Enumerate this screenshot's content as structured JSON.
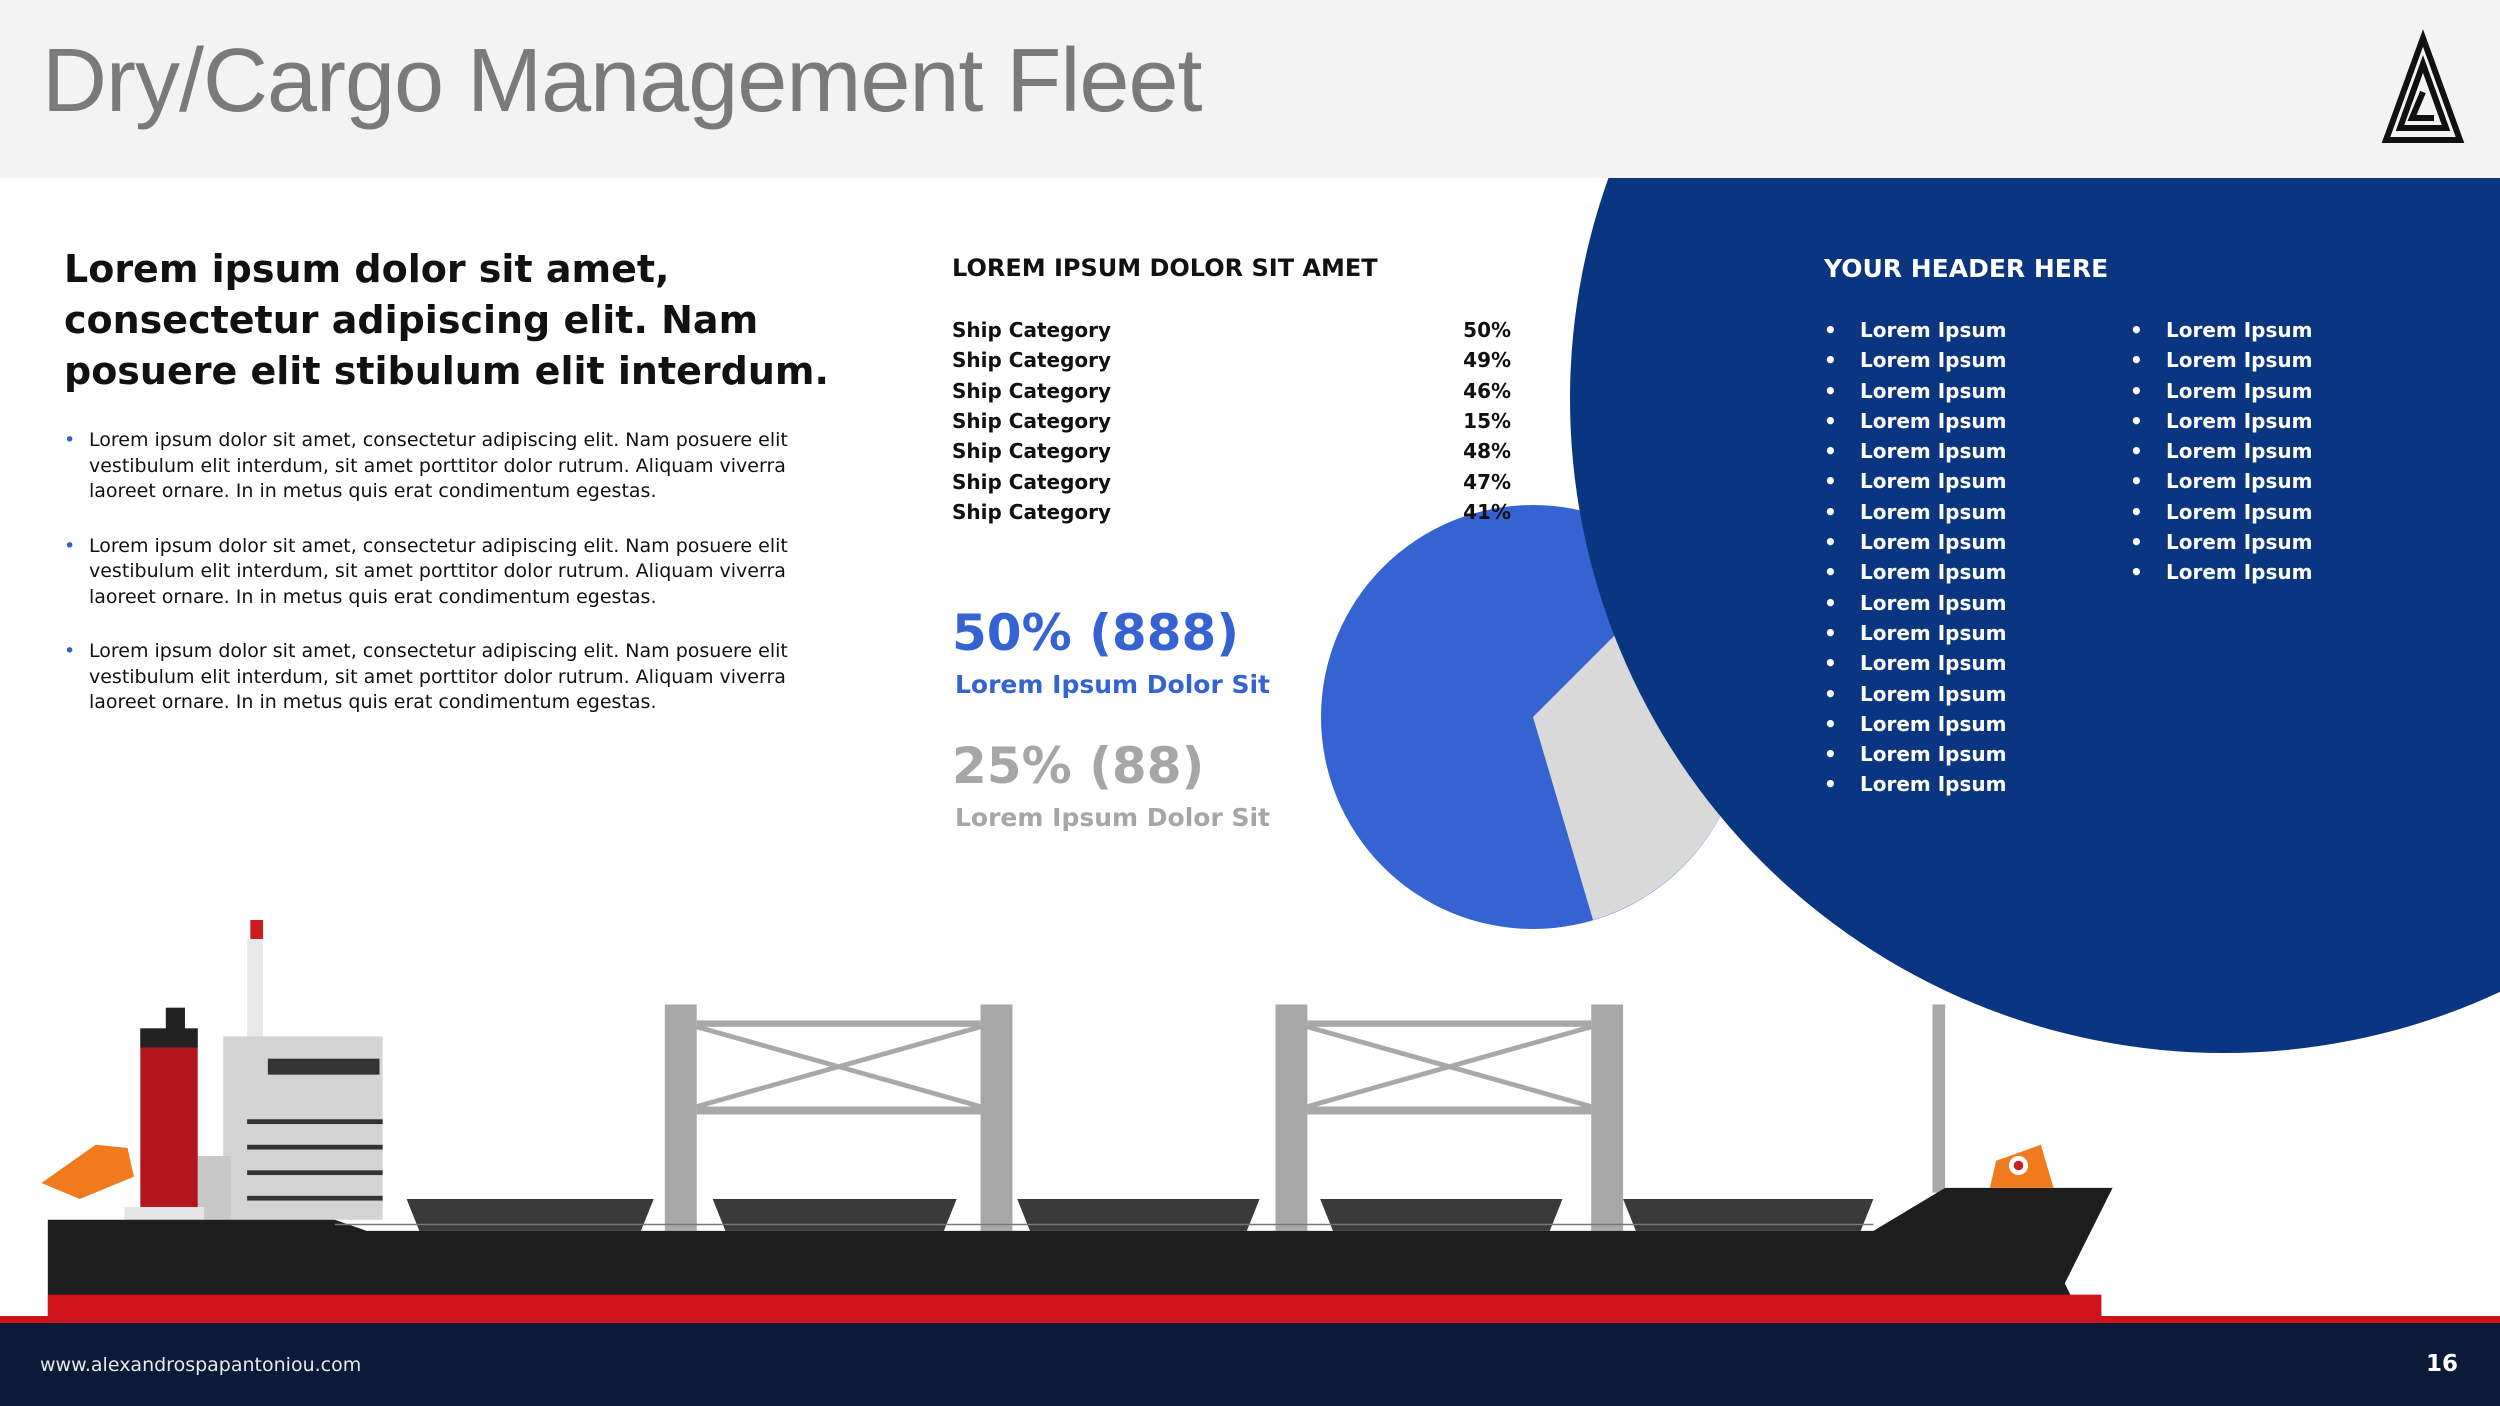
{
  "header": {
    "title": "Dry/Cargo Management Fleet"
  },
  "intro": {
    "heading": "Lorem ipsum dolor sit amet, consectetur adipiscing elit. Nam posuere elit stibulum elit interdum.",
    "bullets": [
      "Lorem ipsum dolor sit amet, consectetur adipiscing elit. Nam posuere elit vestibulum elit interdum, sit amet porttitor dolor rutrum. Aliquam viverra laoreet ornare. In in metus quis erat condimentum egestas.",
      "Lorem ipsum dolor sit amet, consectetur adipiscing elit. Nam posuere elit vestibulum elit interdum, sit amet porttitor dolor rutrum. Aliquam viverra laoreet ornare. In in metus quis erat condimentum egestas.",
      "Lorem ipsum dolor sit amet, consectetur adipiscing elit. Nam posuere elit vestibulum elit interdum, sit amet porttitor dolor rutrum. Aliquam viverra laoreet ornare. In in metus quis erat condimentum egestas."
    ]
  },
  "table": {
    "title": "LOREM IPSUM DOLOR SIT AMET",
    "rows": [
      [
        "Ship Category",
        "50%"
      ],
      [
        "Ship Category",
        "49%"
      ],
      [
        "Ship Category",
        "46%"
      ],
      [
        "Ship Category",
        "15%"
      ],
      [
        "Ship Category",
        "48%"
      ],
      [
        "Ship Category",
        "47%"
      ],
      [
        "Ship Category",
        "41%"
      ]
    ]
  },
  "stats": [
    {
      "value": "50% (888)",
      "caption": "Lorem Ipsum Dolor Sit"
    },
    {
      "value": "25% (88)",
      "caption": "Lorem Ipsum Dolor Sit"
    }
  ],
  "panel": {
    "title": "YOUR HEADER HERE",
    "columns": [
      [
        "Lorem Ipsum",
        "Lorem Ipsum",
        "Lorem Ipsum",
        "Lorem Ipsum",
        "Lorem Ipsum",
        "Lorem Ipsum",
        "Lorem Ipsum",
        "Lorem Ipsum",
        "Lorem Ipsum",
        "Lorem Ipsum",
        "Lorem Ipsum",
        "Lorem Ipsum",
        "Lorem Ipsum",
        "Lorem Ipsum",
        "Lorem Ipsum",
        "Lorem Ipsum"
      ],
      [
        "Lorem Ipsum",
        "Lorem Ipsum",
        "Lorem Ipsum",
        "Lorem Ipsum",
        "Lorem Ipsum",
        "Lorem Ipsum",
        "Lorem Ipsum",
        "Lorem Ipsum",
        "Lorem Ipsum"
      ]
    ]
  },
  "footer": {
    "url": "www.alexandrospapantoniou.com",
    "page": 16
  }
}
